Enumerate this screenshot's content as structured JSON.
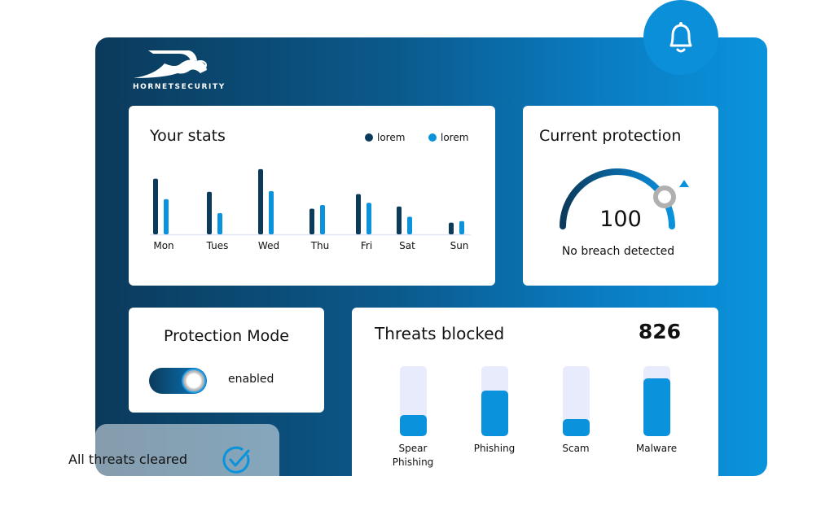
{
  "brand": {
    "name": "HORNETSECURITY"
  },
  "colors": {
    "dark": "#0b3a5b",
    "light": "#0a93dc",
    "track": "#e8ebfb"
  },
  "stats": {
    "title": "Your stats",
    "legend": [
      {
        "label": "lorem",
        "color": "#0b3a5b"
      },
      {
        "label": "lorem",
        "color": "#0a93dc"
      }
    ]
  },
  "chart_data": {
    "type": "bar",
    "title": "Your stats",
    "categories": [
      "Mon",
      "Tues",
      "Wed",
      "Thu",
      "Fri",
      "Sat",
      "Sun"
    ],
    "series": [
      {
        "name": "lorem",
        "color": "#0b3a5b",
        "values": [
          76,
          58,
          89,
          35,
          55,
          38,
          16
        ]
      },
      {
        "name": "lorem",
        "color": "#0a93dc",
        "values": [
          48,
          29,
          59,
          40,
          43,
          24,
          18
        ]
      }
    ],
    "ylim": [
      0,
      100
    ],
    "grid": false,
    "legend": "top-right"
  },
  "protection": {
    "title": "Current protection",
    "value": "100",
    "status": "No breach detected",
    "gauge_fraction": 0.85
  },
  "mode": {
    "title": "Protection Mode",
    "state": "enabled",
    "on": true
  },
  "threats": {
    "title": "Threats blocked",
    "count": "826",
    "items": [
      {
        "label": "Spear Phishing",
        "fraction": 0.3
      },
      {
        "label": "Phishing",
        "fraction": 0.65
      },
      {
        "label": "Scam",
        "fraction": 0.24
      },
      {
        "label": "Malware",
        "fraction": 0.82
      }
    ]
  },
  "toast": {
    "text": "All threats cleared"
  },
  "icons": {
    "bell": "bell-icon",
    "check": "check-circle-icon",
    "logo": "hornet-logo"
  }
}
